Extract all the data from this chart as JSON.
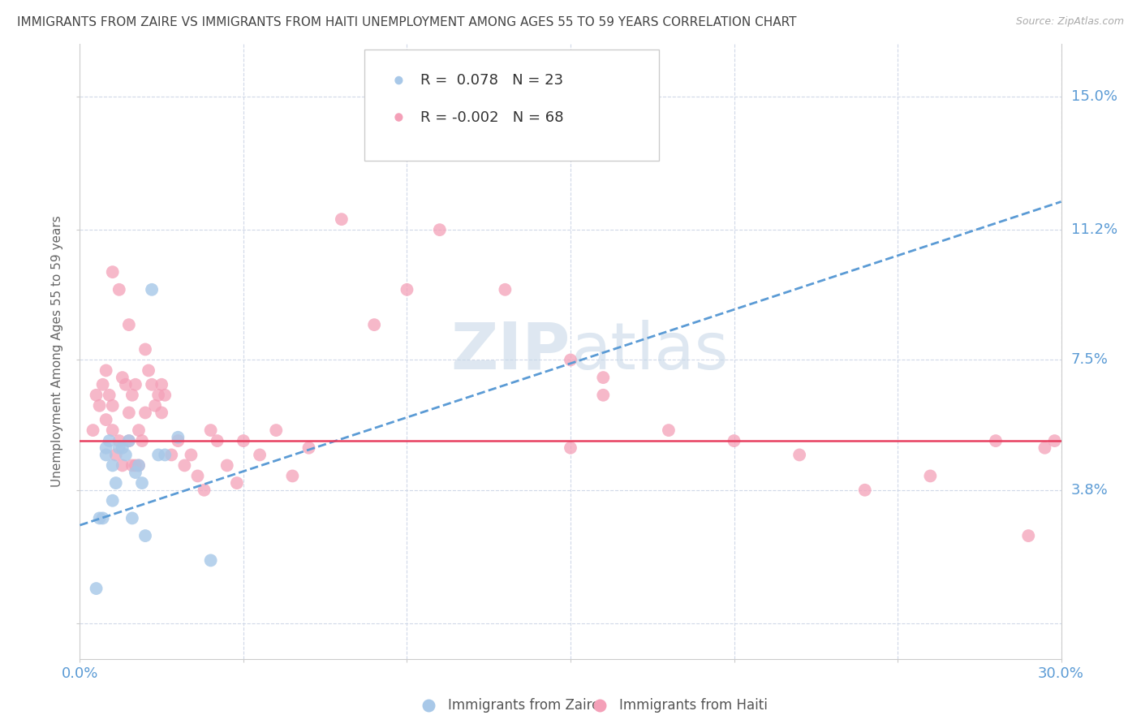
{
  "title": "IMMIGRANTS FROM ZAIRE VS IMMIGRANTS FROM HAITI UNEMPLOYMENT AMONG AGES 55 TO 59 YEARS CORRELATION CHART",
  "source": "Source: ZipAtlas.com",
  "ylabel": "Unemployment Among Ages 55 to 59 years",
  "xlim": [
    0.0,
    0.3
  ],
  "ylim": [
    -0.01,
    0.165
  ],
  "ytick_positions": [
    0.0,
    0.038,
    0.075,
    0.112,
    0.15
  ],
  "right_ytick_labels": [
    "15.0%",
    "11.2%",
    "7.5%",
    "3.8%",
    ""
  ],
  "legend_zaire_R": "0.078",
  "legend_zaire_N": "23",
  "legend_haiti_R": "-0.002",
  "legend_haiti_N": "68",
  "zaire_color": "#a8c8e8",
  "haiti_color": "#f4a0b8",
  "trendline_zaire_color": "#5b9bd5",
  "trendline_haiti_color": "#e84060",
  "watermark_color": "#c8d8e8",
  "background_color": "#ffffff",
  "grid_color": "#d0d8e8",
  "axis_label_color": "#5b9bd5",
  "title_color": "#444444",
  "zaire_points_x": [
    0.005,
    0.006,
    0.007,
    0.008,
    0.008,
    0.009,
    0.01,
    0.01,
    0.011,
    0.012,
    0.013,
    0.014,
    0.015,
    0.016,
    0.017,
    0.018,
    0.019,
    0.02,
    0.022,
    0.024,
    0.026,
    0.03,
    0.04
  ],
  "zaire_points_y": [
    0.01,
    0.03,
    0.03,
    0.048,
    0.05,
    0.052,
    0.045,
    0.035,
    0.04,
    0.05,
    0.05,
    0.048,
    0.052,
    0.03,
    0.043,
    0.045,
    0.04,
    0.025,
    0.095,
    0.048,
    0.048,
    0.053,
    0.018
  ],
  "haiti_points_x": [
    0.004,
    0.005,
    0.006,
    0.007,
    0.008,
    0.008,
    0.009,
    0.01,
    0.01,
    0.011,
    0.012,
    0.013,
    0.013,
    0.014,
    0.015,
    0.015,
    0.016,
    0.016,
    0.017,
    0.017,
    0.018,
    0.018,
    0.019,
    0.02,
    0.021,
    0.022,
    0.023,
    0.024,
    0.025,
    0.026,
    0.028,
    0.03,
    0.032,
    0.034,
    0.036,
    0.038,
    0.04,
    0.042,
    0.045,
    0.048,
    0.05,
    0.055,
    0.06,
    0.065,
    0.07,
    0.08,
    0.09,
    0.1,
    0.11,
    0.13,
    0.15,
    0.16,
    0.18,
    0.2,
    0.22,
    0.24,
    0.26,
    0.28,
    0.29,
    0.295,
    0.298,
    0.01,
    0.012,
    0.015,
    0.02,
    0.025,
    0.15,
    0.16
  ],
  "haiti_points_y": [
    0.055,
    0.065,
    0.062,
    0.068,
    0.072,
    0.058,
    0.065,
    0.055,
    0.062,
    0.048,
    0.052,
    0.07,
    0.045,
    0.068,
    0.06,
    0.052,
    0.065,
    0.045,
    0.068,
    0.045,
    0.055,
    0.045,
    0.052,
    0.06,
    0.072,
    0.068,
    0.062,
    0.065,
    0.06,
    0.065,
    0.048,
    0.052,
    0.045,
    0.048,
    0.042,
    0.038,
    0.055,
    0.052,
    0.045,
    0.04,
    0.052,
    0.048,
    0.055,
    0.042,
    0.05,
    0.115,
    0.085,
    0.095,
    0.112,
    0.095,
    0.05,
    0.065,
    0.055,
    0.052,
    0.048,
    0.038,
    0.042,
    0.052,
    0.025,
    0.05,
    0.052,
    0.1,
    0.095,
    0.085,
    0.078,
    0.068,
    0.075,
    0.07
  ],
  "zaire_trendline_y0": 0.028,
  "zaire_trendline_y1": 0.12,
  "haiti_trendline_y0": 0.052,
  "haiti_trendline_y1": 0.052
}
